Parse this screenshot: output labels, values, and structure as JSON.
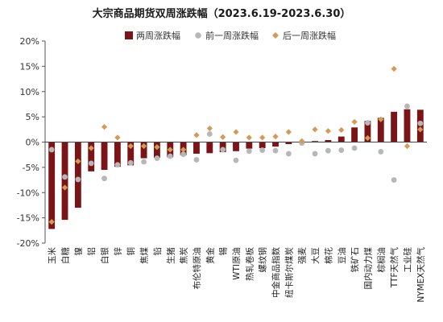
{
  "chart_data": {
    "type": "bar",
    "title": "大宗商品期货双周涨跌幅（2023.6.19-2023.6.30）",
    "ylim": [
      -20,
      20
    ],
    "yticks": [
      -20,
      -15,
      -10,
      -5,
      0,
      5,
      10,
      15,
      20
    ],
    "ytick_labels": [
      "-20%",
      "-15%",
      "-10%",
      "-5%",
      "0%",
      "5%",
      "10%",
      "15%",
      "20%"
    ],
    "legend_position": "top",
    "grid": false,
    "categories": [
      "玉米",
      "白糖",
      "镍",
      "铝",
      "白银",
      "锌",
      "铜",
      "焦煤",
      "铅",
      "生猪",
      "焦炭",
      "布伦特原油",
      "黄金",
      "锡",
      "WTI原油",
      "热轧卷板",
      "螺纹钢",
      "中金商品指数",
      "纽卡斯尔煤炭",
      "强麦",
      "大豆",
      "棉花",
      "豆油",
      "铁矿石",
      "国内动力煤",
      "棕榈油",
      "TTF天然气",
      "工业硅",
      "NYMEX天然气"
    ],
    "series": [
      {
        "name": "两周涨跌幅",
        "kind": "bar",
        "color": "#7b1416",
        "values": [
          -17.2,
          -15.4,
          -13.0,
          -5.8,
          -5.5,
          -4.9,
          -4.6,
          -3.2,
          -3.1,
          -3.0,
          -2.6,
          -2.3,
          -2.2,
          -2.0,
          -1.8,
          -1.3,
          -1.2,
          -0.9,
          -0.4,
          0.0,
          0.2,
          0.4,
          1.1,
          2.9,
          4.2,
          4.8,
          6.0,
          6.5,
          6.4
        ]
      },
      {
        "name": "前一周涨跌幅",
        "kind": "marker",
        "shape": "circle",
        "color": "#b7b7b7",
        "values": [
          -1.5,
          -6.9,
          -7.4,
          -4.2,
          -7.2,
          -4.5,
          -4.1,
          -3.9,
          -3.2,
          -2.8,
          -2.4,
          -3.5,
          1.6,
          -1.5,
          -3.6,
          -1.8,
          -1.6,
          -1.7,
          -2.3,
          -0.2,
          -2.3,
          -1.7,
          -1.6,
          -1.2,
          3.8,
          -1.9,
          -7.5,
          7.1,
          3.7
        ]
      },
      {
        "name": "后一周涨跌幅",
        "kind": "marker",
        "shape": "diamond",
        "color": "#d39b55",
        "values": [
          -15.8,
          -9.0,
          -3.8,
          -1.2,
          3.0,
          0.9,
          -0.8,
          -0.8,
          -1.0,
          -1.5,
          -1.5,
          1.4,
          2.7,
          1.0,
          2.0,
          0.9,
          0.9,
          1.1,
          2.0,
          0.2,
          2.5,
          2.2,
          2.4,
          4.0,
          0.8,
          4.5,
          14.5,
          -0.8,
          2.5
        ]
      }
    ]
  }
}
